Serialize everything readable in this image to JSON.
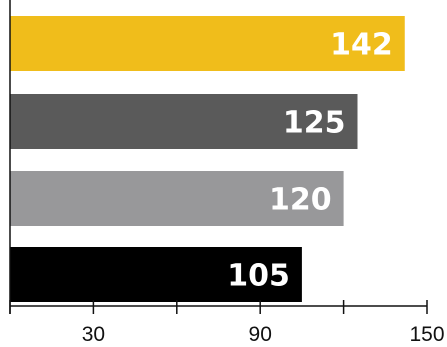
{
  "chart_data": {
    "type": "bar",
    "orientation": "horizontal",
    "title": "",
    "xlabel": "",
    "ylabel": "",
    "categories": [
      "",
      "",
      "",
      ""
    ],
    "values": [
      142,
      125,
      120,
      105
    ],
    "data_labels": [
      "142",
      "125",
      "120",
      "105"
    ],
    "colors": [
      "#f0bd1b",
      "#5a5a5a",
      "#98989a",
      "#000000"
    ],
    "xlim": [
      0,
      150
    ],
    "x_ticks": [
      0,
      30,
      60,
      90,
      120,
      150
    ],
    "x_tick_labels": [
      "",
      "30",
      "",
      "90",
      "",
      "150"
    ],
    "grid": false,
    "legend": "none"
  }
}
